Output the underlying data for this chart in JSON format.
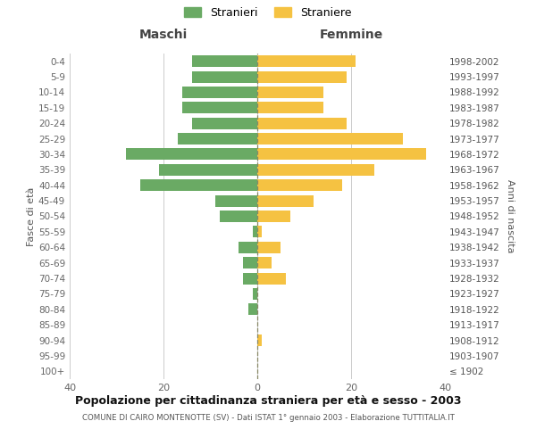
{
  "age_groups": [
    "100+",
    "95-99",
    "90-94",
    "85-89",
    "80-84",
    "75-79",
    "70-74",
    "65-69",
    "60-64",
    "55-59",
    "50-54",
    "45-49",
    "40-44",
    "35-39",
    "30-34",
    "25-29",
    "20-24",
    "15-19",
    "10-14",
    "5-9",
    "0-4"
  ],
  "birth_years": [
    "≤ 1902",
    "1903-1907",
    "1908-1912",
    "1913-1917",
    "1918-1922",
    "1923-1927",
    "1928-1932",
    "1933-1937",
    "1938-1942",
    "1943-1947",
    "1948-1952",
    "1953-1957",
    "1958-1962",
    "1963-1967",
    "1968-1972",
    "1973-1977",
    "1978-1982",
    "1983-1987",
    "1988-1992",
    "1993-1997",
    "1998-2002"
  ],
  "males": [
    0,
    0,
    0,
    0,
    2,
    1,
    3,
    3,
    4,
    1,
    8,
    9,
    25,
    21,
    28,
    17,
    14,
    16,
    16,
    14,
    14
  ],
  "females": [
    0,
    0,
    1,
    0,
    0,
    0,
    6,
    3,
    5,
    1,
    7,
    12,
    18,
    25,
    36,
    31,
    19,
    14,
    14,
    19,
    21
  ],
  "male_color": "#6aaa64",
  "female_color": "#f5c242",
  "background_color": "#ffffff",
  "grid_color": "#cccccc",
  "title": "Popolazione per cittadinanza straniera per età e sesso - 2003",
  "subtitle": "COMUNE DI CAIRO MONTENOTTE (SV) - Dati ISTAT 1° gennaio 2003 - Elaborazione TUTTITALIA.IT",
  "label_maschi": "Maschi",
  "label_femmine": "Femmine",
  "ylabel_left": "Fasce di età",
  "ylabel_right": "Anni di nascita",
  "legend_male": "Stranieri",
  "legend_female": "Straniere",
  "xlim": 40
}
